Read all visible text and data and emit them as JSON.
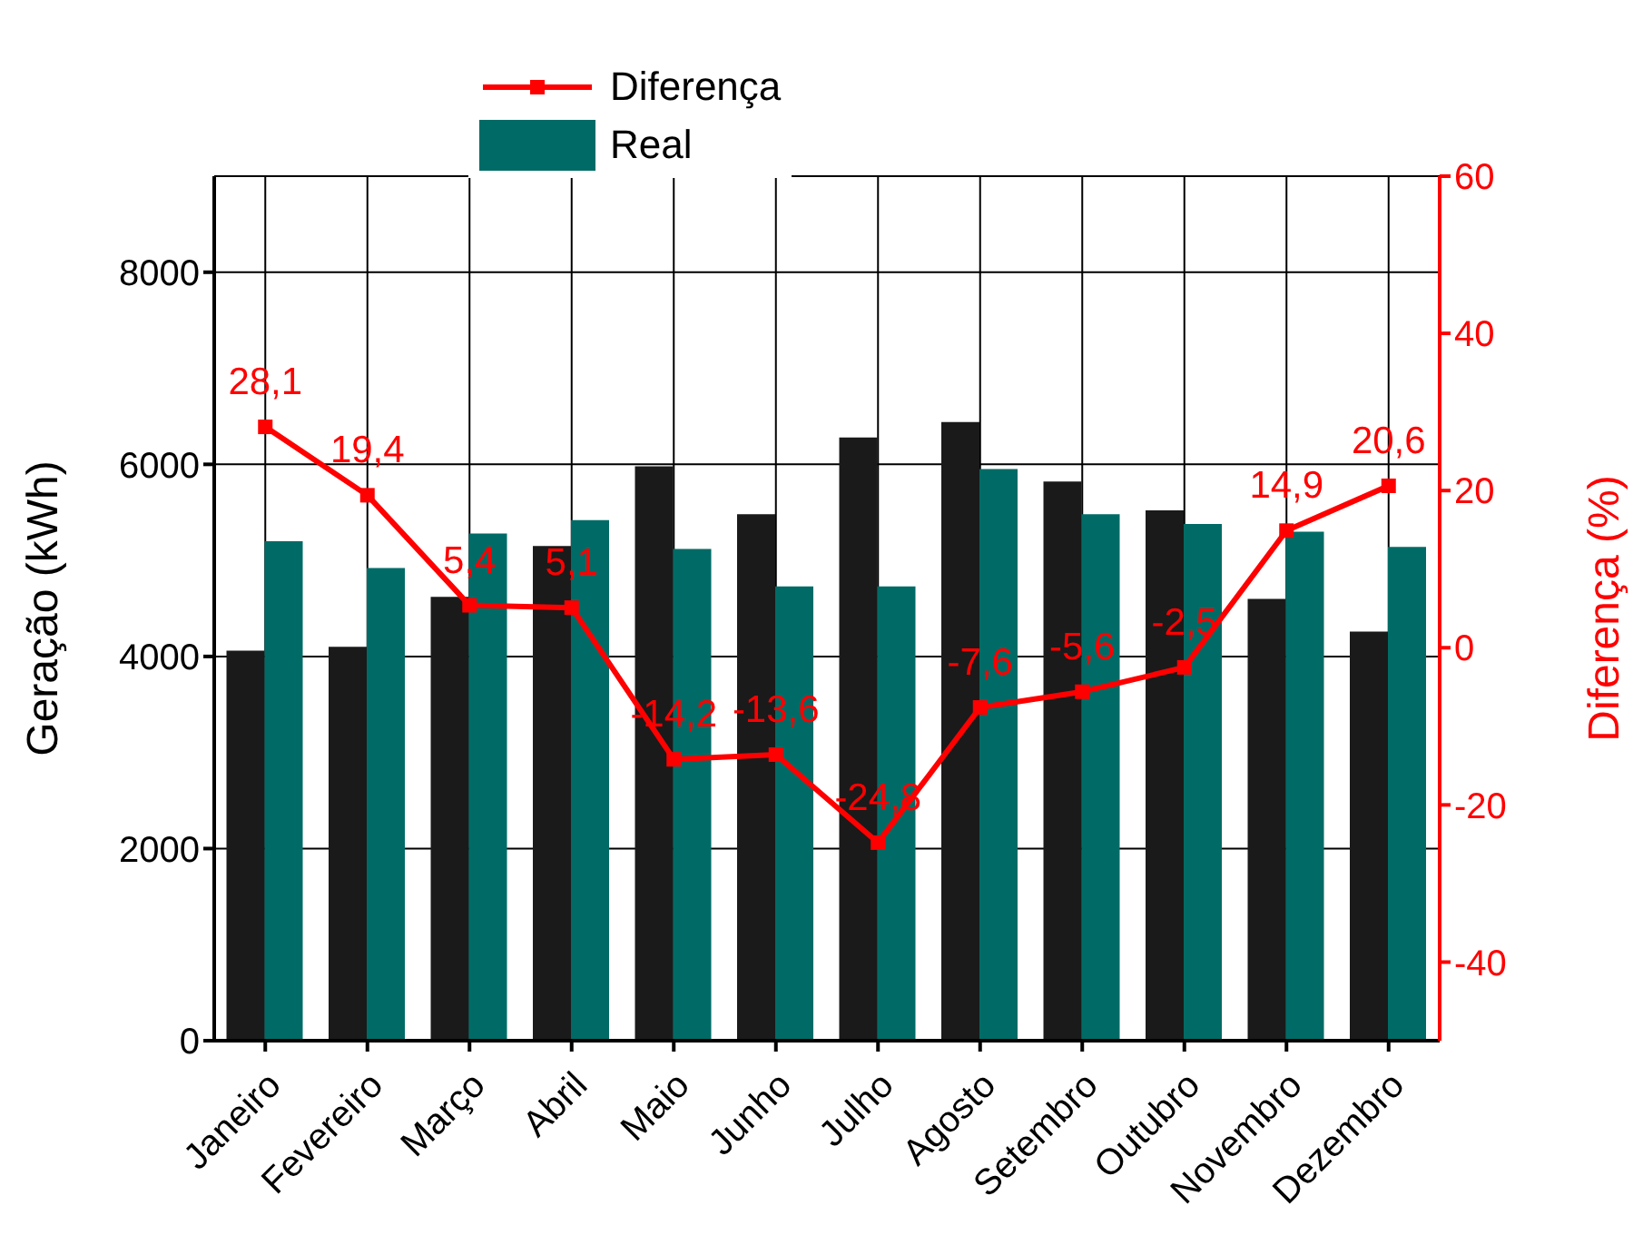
{
  "chart_data": {
    "type": "bar",
    "categories": [
      "Janeiro",
      "Fevereiro",
      "Março",
      "Abril",
      "Maio",
      "Junho",
      "Julho",
      "Agosto",
      "Setembro",
      "Outubro",
      "Novembro",
      "Dezembro"
    ],
    "ylabel": "Geração (kWh)",
    "y2label": "Diferença (%)",
    "ylim": [
      0,
      9000
    ],
    "yticks": [
      0,
      2000,
      4000,
      6000,
      8000
    ],
    "y2lim": [
      -50,
      60
    ],
    "y2ticks": [
      -40,
      -20,
      0,
      20,
      40,
      60
    ],
    "grid": true,
    "legend": "top",
    "marker": "square",
    "line_style": "solid",
    "series": [
      {
        "color": "#1a1a1a",
        "values": [
          4060,
          4100,
          4620,
          5150,
          5980,
          5480,
          6280,
          6440,
          5820,
          5520,
          4600,
          4260
        ]
      },
      {
        "name": "Real",
        "color": "#006b66",
        "values": [
          5200,
          4920,
          5280,
          5420,
          5120,
          4730,
          4730,
          5950,
          5480,
          5380,
          5300,
          5140
        ]
      },
      {
        "type": "line",
        "name": "Diferença",
        "axis": "y2",
        "color": "#ff0000",
        "values": [
          28.1,
          19.4,
          5.4,
          5.1,
          -14.2,
          -13.6,
          -24.8,
          -7.6,
          -5.6,
          -2.5,
          14.9,
          20.6
        ],
        "value_labels": [
          "28,1",
          "19,4",
          "5,4",
          "5,1",
          "-14,2",
          "-13,6",
          "-24,8",
          "-7,6",
          "-5,6",
          "-2,5",
          "14,9",
          "20,6"
        ]
      }
    ]
  }
}
